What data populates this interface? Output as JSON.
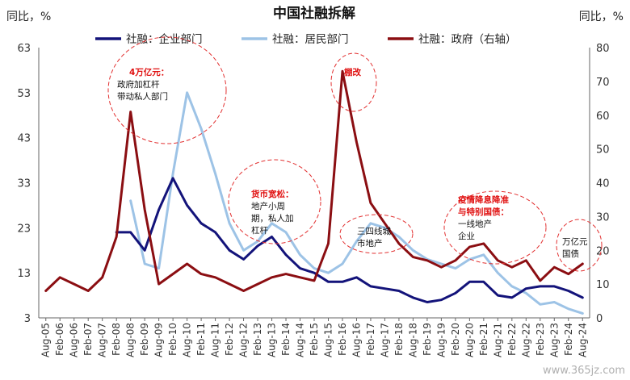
{
  "chart_data": {
    "type": "line",
    "title": "中国社融拆解",
    "left_unit": "同比，%",
    "right_unit": "同比，%",
    "y_left": {
      "min": 3,
      "max": 63,
      "ticks": [
        3,
        13,
        23,
        33,
        43,
        53,
        63
      ]
    },
    "y_right": {
      "min": 0,
      "max": 80,
      "ticks": [
        0,
        10,
        20,
        30,
        40,
        50,
        60,
        70,
        80
      ]
    },
    "x_ticks": [
      "Aug-05",
      "Feb-06",
      "Aug-06",
      "Feb-07",
      "Aug-07",
      "Feb-08",
      "Aug-08",
      "Feb-09",
      "Aug-09",
      "Feb-10",
      "Aug-10",
      "Feb-11",
      "Aug-11",
      "Feb-12",
      "Aug-12",
      "Feb-13",
      "Aug-13",
      "Feb-14",
      "Aug-14",
      "Feb-15",
      "Aug-15",
      "Feb-16",
      "Aug-16",
      "Feb-17",
      "Aug-17",
      "Feb-18",
      "Aug-18",
      "Feb-19",
      "Aug-19",
      "Feb-20",
      "Aug-20",
      "Feb-21",
      "Aug-21",
      "Feb-22",
      "Aug-22",
      "Feb-23",
      "Aug-23",
      "Feb-24",
      "Aug-24"
    ],
    "legend_position": "top",
    "series": [
      {
        "name": "社融：企业部门",
        "axis": "left",
        "color": "#13137a",
        "points": [
          [
            "Feb-08",
            22
          ],
          [
            "Aug-08",
            22
          ],
          [
            "Feb-09",
            18
          ],
          [
            "Aug-09",
            27
          ],
          [
            "Feb-10",
            34
          ],
          [
            "Aug-10",
            28
          ],
          [
            "Feb-11",
            24
          ],
          [
            "Aug-11",
            22
          ],
          [
            "Feb-12",
            18
          ],
          [
            "Aug-12",
            16
          ],
          [
            "Feb-13",
            19
          ],
          [
            "Aug-13",
            21
          ],
          [
            "Feb-14",
            17
          ],
          [
            "Aug-14",
            14
          ],
          [
            "Feb-15",
            13
          ],
          [
            "Aug-15",
            11
          ],
          [
            "Feb-16",
            11
          ],
          [
            "Aug-16",
            12
          ],
          [
            "Feb-17",
            10
          ],
          [
            "Aug-17",
            9.5
          ],
          [
            "Feb-18",
            9
          ],
          [
            "Aug-18",
            7.5
          ],
          [
            "Feb-19",
            6.5
          ],
          [
            "Aug-19",
            7
          ],
          [
            "Feb-20",
            8.5
          ],
          [
            "Aug-20",
            11
          ],
          [
            "Feb-21",
            11
          ],
          [
            "Aug-21",
            8
          ],
          [
            "Feb-22",
            7.5
          ],
          [
            "Aug-22",
            9.5
          ],
          [
            "Feb-23",
            10
          ],
          [
            "Aug-23",
            10
          ],
          [
            "Feb-24",
            9
          ],
          [
            "Aug-24",
            7.5
          ]
        ]
      },
      {
        "name": "社融：居民部门",
        "axis": "left",
        "color": "#9dc3e6",
        "points": [
          [
            "Aug-08",
            29
          ],
          [
            "Feb-09",
            15
          ],
          [
            "Aug-09",
            14
          ],
          [
            "Feb-10",
            35
          ],
          [
            "Aug-10",
            53
          ],
          [
            "Feb-11",
            45
          ],
          [
            "Aug-11",
            35
          ],
          [
            "Feb-12",
            24
          ],
          [
            "Aug-12",
            18
          ],
          [
            "Feb-13",
            20
          ],
          [
            "Aug-13",
            24
          ],
          [
            "Feb-14",
            22
          ],
          [
            "Aug-14",
            17
          ],
          [
            "Feb-15",
            14
          ],
          [
            "Aug-15",
            13
          ],
          [
            "Feb-16",
            15
          ],
          [
            "Aug-16",
            20
          ],
          [
            "Feb-17",
            24
          ],
          [
            "Aug-17",
            23
          ],
          [
            "Feb-18",
            21
          ],
          [
            "Aug-18",
            18
          ],
          [
            "Feb-19",
            16
          ],
          [
            "Aug-19",
            15
          ],
          [
            "Feb-20",
            14
          ],
          [
            "Aug-20",
            16
          ],
          [
            "Feb-21",
            17
          ],
          [
            "Aug-21",
            13
          ],
          [
            "Feb-22",
            10
          ],
          [
            "Aug-22",
            8.5
          ],
          [
            "Feb-23",
            6
          ],
          [
            "Aug-23",
            6.5
          ],
          [
            "Feb-24",
            5
          ],
          [
            "Aug-24",
            4
          ]
        ]
      },
      {
        "name": "社融：政府（右轴）",
        "axis": "right",
        "color": "#8b0e12",
        "points": [
          [
            "Aug-05",
            8
          ],
          [
            "Feb-06",
            12
          ],
          [
            "Aug-06",
            10
          ],
          [
            "Feb-07",
            8
          ],
          [
            "Aug-07",
            12
          ],
          [
            "Feb-08",
            24
          ],
          [
            "Aug-08",
            61
          ],
          [
            "Feb-09",
            32
          ],
          [
            "Aug-09",
            10
          ],
          [
            "Feb-10",
            13
          ],
          [
            "Aug-10",
            16
          ],
          [
            "Feb-11",
            13
          ],
          [
            "Aug-11",
            12
          ],
          [
            "Feb-12",
            10
          ],
          [
            "Aug-12",
            8
          ],
          [
            "Feb-13",
            10
          ],
          [
            "Aug-13",
            12
          ],
          [
            "Feb-14",
            13
          ],
          [
            "Aug-14",
            12
          ],
          [
            "Feb-15",
            11
          ],
          [
            "Aug-15",
            22
          ],
          [
            "Feb-16",
            73
          ],
          [
            "Aug-16",
            52
          ],
          [
            "Feb-17",
            34
          ],
          [
            "Aug-17",
            28
          ],
          [
            "Feb-18",
            22
          ],
          [
            "Aug-18",
            18
          ],
          [
            "Feb-19",
            17
          ],
          [
            "Aug-19",
            15
          ],
          [
            "Feb-20",
            17
          ],
          [
            "Aug-20",
            21
          ],
          [
            "Feb-21",
            22
          ],
          [
            "Aug-21",
            17
          ],
          [
            "Feb-22",
            15
          ],
          [
            "Aug-22",
            17
          ],
          [
            "Feb-23",
            11
          ],
          [
            "Aug-23",
            15
          ],
          [
            "Feb-24",
            13
          ],
          [
            "Aug-24",
            16
          ]
        ]
      }
    ],
    "annotations": [
      {
        "lines": [
          "4万亿元：",
          "政府加杠杆",
          "带动私人部门"
        ],
        "red_lines": 1
      },
      {
        "lines": [
          "货币宽松：",
          "地产小周",
          "期，私人加",
          "杠杆"
        ],
        "red_lines": 1
      },
      {
        "lines": [
          "棚改"
        ],
        "red_lines": 1
      },
      {
        "lines": [
          "三四线城",
          "市地产"
        ],
        "red_lines": 0
      },
      {
        "lines": [
          "疫情降息降准",
          "与特别国债：",
          "一线地产",
          "企业"
        ],
        "red_lines": 2
      },
      {
        "lines": [
          "万亿元",
          "国债"
        ],
        "red_lines": 0
      }
    ],
    "watermark": "www.365jz.com"
  }
}
